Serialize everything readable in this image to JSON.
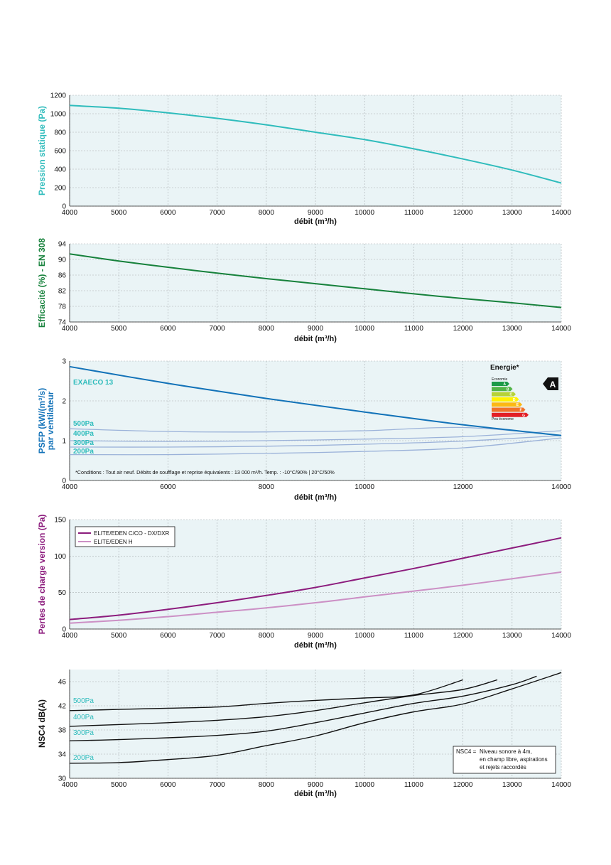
{
  "colors": {
    "panel_bg": "#eaf4f6",
    "grid": "#a7adb0",
    "cyan": "#2fbcbc",
    "green": "#16813b",
    "blue": "#1272b8",
    "light_blue": "#9bb2d9",
    "purple": "#8c1c7d",
    "light_purple": "#cc90c5",
    "black": "#111111",
    "teal_text": "#2fbcbc"
  },
  "chart_data": [
    {
      "id": "pression",
      "type": "line",
      "ylabel": "Pression statique (Pa)",
      "xlabel": "débit (m³/h)",
      "xlim": [
        4000,
        14000
      ],
      "ylim": [
        0,
        1200
      ],
      "xticks": [
        4000,
        5000,
        6000,
        7000,
        8000,
        9000,
        10000,
        11000,
        12000,
        13000,
        14000
      ],
      "yticks": [
        0,
        200,
        400,
        600,
        800,
        1000,
        1200
      ],
      "grid": true,
      "series": [
        {
          "color": "#2fbcbc",
          "x": [
            4000,
            5000,
            6000,
            7000,
            8000,
            9000,
            10000,
            11000,
            12000,
            13000,
            14000
          ],
          "y": [
            1090,
            1060,
            1010,
            950,
            880,
            800,
            720,
            620,
            510,
            390,
            250
          ]
        }
      ]
    },
    {
      "id": "efficacite",
      "type": "line",
      "ylabel": "Efficacité (%) - EN 308",
      "xlabel": "débit (m³/h)",
      "xlim": [
        4000,
        14000
      ],
      "ylim": [
        74,
        94
      ],
      "xticks": [
        4000,
        5000,
        6000,
        7000,
        8000,
        9000,
        10000,
        11000,
        12000,
        13000,
        14000
      ],
      "yticks": [
        74,
        78,
        82,
        86,
        90,
        94
      ],
      "grid": true,
      "series": [
        {
          "color": "#16813b",
          "x": [
            4000,
            5000,
            6000,
            7000,
            8000,
            9000,
            10000,
            11000,
            12000,
            13000,
            14000
          ],
          "y": [
            91.4,
            89.6,
            88.0,
            86.5,
            85.1,
            83.8,
            82.5,
            81.2,
            80.0,
            78.9,
            77.7
          ]
        }
      ]
    },
    {
      "id": "psfp",
      "type": "line",
      "ylabel": "PSFP (kW/(m³/s)",
      "ylabel2": "par ventilateur",
      "xlabel": "débit (m³/h)",
      "xlim": [
        4000,
        14000
      ],
      "ylim": [
        0,
        3
      ],
      "xticks": [
        4000,
        6000,
        8000,
        10000,
        12000,
        14000
      ],
      "yticks": [
        0,
        1,
        2,
        3
      ],
      "grid": true,
      "series": [
        {
          "name": "EXAECO 13",
          "color": "#1272b8",
          "x": [
            4000,
            6000,
            8000,
            10000,
            12000,
            14000
          ],
          "y": [
            2.86,
            2.44,
            2.06,
            1.72,
            1.4,
            1.13
          ]
        },
        {
          "name": "500Pa",
          "color": "#9bb2d9",
          "x": [
            4000,
            6000,
            8000,
            10000,
            12000,
            14000
          ],
          "y": [
            1.3,
            1.23,
            1.22,
            1.25,
            1.33,
            1.14
          ]
        },
        {
          "name": "400Pa",
          "color": "#9bb2d9",
          "x": [
            4000,
            6000,
            8000,
            10000,
            12000,
            14000
          ],
          "y": [
            1.0,
            0.98,
            1.0,
            1.04,
            1.1,
            1.25
          ]
        },
        {
          "name": "300Pa",
          "color": "#9bb2d9",
          "x": [
            4000,
            6000,
            8000,
            10000,
            12000,
            14000
          ],
          "y": [
            0.84,
            0.84,
            0.86,
            0.91,
            0.99,
            1.13
          ]
        },
        {
          "name": "200Pa",
          "color": "#9bb2d9",
          "x": [
            4000,
            6000,
            8000,
            10000,
            12000,
            14000
          ],
          "y": [
            0.65,
            0.65,
            0.68,
            0.73,
            0.82,
            1.07
          ]
        }
      ],
      "annotation": "*Conditions : Tout air neuf. Débits de soufflage et reprise équivalents : 13 000 m³/h. Temp. : -10°C/90% | 20°C/50%",
      "energy": {
        "title": "Energie*",
        "top_label": "Economie",
        "bottom_label": "Peu économe",
        "classes": [
          "A",
          "B",
          "C",
          "D",
          "E",
          "F",
          "G"
        ],
        "class_colors": [
          "#1b9a47",
          "#52b447",
          "#b6d236",
          "#fff200",
          "#fcb814",
          "#f0712a",
          "#e21f26"
        ],
        "rating": "A"
      }
    },
    {
      "id": "pertes",
      "type": "line",
      "ylabel": "Pertes de charge version (Pa)",
      "xlabel": "débit (m³/h)",
      "xlim": [
        4000,
        14000
      ],
      "ylim": [
        0,
        150
      ],
      "xticks": [
        4000,
        5000,
        6000,
        7000,
        8000,
        9000,
        10000,
        11000,
        12000,
        13000,
        14000
      ],
      "yticks": [
        0,
        50,
        100,
        150
      ],
      "grid": true,
      "legend": "top-left",
      "series": [
        {
          "name": "ELITE/EDEN C/CO - DX/DXR",
          "color": "#8c1c7d",
          "x": [
            4000,
            5000,
            6000,
            7000,
            8000,
            9000,
            10000,
            11000,
            12000,
            13000,
            14000
          ],
          "y": [
            13,
            19,
            27,
            36,
            46,
            57,
            70,
            83,
            97,
            111,
            125
          ]
        },
        {
          "name": "ELITE/EDEN H",
          "color": "#cc90c5",
          "x": [
            4000,
            5000,
            6000,
            7000,
            8000,
            9000,
            10000,
            11000,
            12000,
            13000,
            14000
          ],
          "y": [
            8,
            12,
            17,
            23,
            29,
            36,
            44,
            52,
            60,
            69,
            78
          ]
        }
      ]
    },
    {
      "id": "nsc4",
      "type": "line",
      "ylabel": "NSC4 dB(A)",
      "xlabel": "débit (m³/h)",
      "xlim": [
        4000,
        14000
      ],
      "ylim": [
        30,
        48
      ],
      "xticks": [
        4000,
        5000,
        6000,
        7000,
        8000,
        9000,
        10000,
        11000,
        12000,
        13000,
        14000
      ],
      "yticks": [
        30,
        34,
        38,
        42,
        46
      ],
      "grid": true,
      "series": [
        {
          "name": "500Pa",
          "color": "#111111",
          "x": [
            4000,
            5000,
            6000,
            7000,
            8000,
            9000,
            10000,
            11000,
            12000
          ],
          "y": [
            41.2,
            41.4,
            41.6,
            41.8,
            42.4,
            42.9,
            43.3,
            43.8,
            46.3
          ]
        },
        {
          "name": "400Pa",
          "color": "#111111",
          "x": [
            4000,
            5000,
            6000,
            7000,
            8000,
            9000,
            10000,
            11000,
            12000,
            12700
          ],
          "y": [
            38.6,
            38.9,
            39.2,
            39.6,
            40.2,
            41.2,
            42.5,
            43.7,
            44.7,
            46.3
          ]
        },
        {
          "name": "300Pa",
          "color": "#111111",
          "x": [
            4000,
            5000,
            6000,
            7000,
            8000,
            9000,
            10000,
            11000,
            12000,
            13000,
            13500
          ],
          "y": [
            36.2,
            36.4,
            36.7,
            37.1,
            37.8,
            39.2,
            40.8,
            42.4,
            43.6,
            45.5,
            46.9
          ]
        },
        {
          "name": "200Pa",
          "color": "#111111",
          "x": [
            4000,
            5000,
            6000,
            7000,
            8000,
            9000,
            10000,
            11000,
            12000,
            13000,
            14000
          ],
          "y": [
            32.5,
            32.6,
            33.1,
            33.8,
            35.4,
            37.0,
            39.2,
            41.0,
            42.3,
            44.8,
            47.5
          ]
        }
      ],
      "note_key": "NSC4 =",
      "note_lines": [
        "Niveau sonore à 4m,",
        "en champ libre, aspirations",
        "et rejets raccordés"
      ]
    }
  ]
}
